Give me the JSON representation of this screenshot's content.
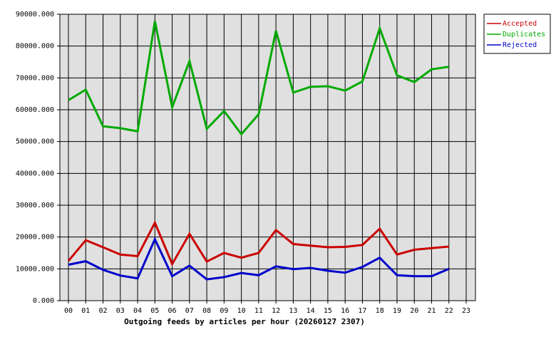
{
  "chart_data": {
    "type": "line",
    "xlabel": "Outgoing feeds by articles per hour (20260127 2307)",
    "categories": [
      "00",
      "01",
      "02",
      "03",
      "04",
      "05",
      "06",
      "07",
      "08",
      "09",
      "10",
      "11",
      "12",
      "13",
      "14",
      "15",
      "16",
      "17",
      "18",
      "19",
      "20",
      "21",
      "22",
      "23"
    ],
    "series": [
      {
        "name": "Accepted",
        "color": "#cc0000",
        "values": [
          12500,
          19000,
          16800,
          14500,
          14000,
          24500,
          11500,
          21000,
          12300,
          15000,
          13500,
          15000,
          22200,
          17800,
          17300,
          16800,
          16900,
          17500,
          22600,
          14500,
          16000,
          16500,
          17000,
          null
        ]
      },
      {
        "name": "Duplicates",
        "color": "#00aa00",
        "values": [
          63000,
          66300,
          54800,
          54200,
          53200,
          87800,
          60800,
          75300,
          54000,
          59600,
          52300,
          58600,
          84800,
          65400,
          67200,
          67400,
          66000,
          68900,
          85600,
          70800,
          68700,
          72700,
          73500,
          null
        ]
      },
      {
        "name": "Rejected",
        "color": "#0000cc",
        "values": [
          11300,
          12400,
          9700,
          7900,
          7000,
          19300,
          7700,
          11000,
          6700,
          7400,
          8700,
          8000,
          10800,
          9900,
          10300,
          9400,
          8800,
          10600,
          13500,
          8000,
          7700,
          7700,
          10000,
          null
        ]
      }
    ],
    "ylim": [
      0,
      90000
    ],
    "yticks": [
      {
        "value": 0,
        "label": "0.000"
      },
      {
        "value": 10000,
        "label": "10000.000"
      },
      {
        "value": 20000,
        "label": "20000.000"
      },
      {
        "value": 30000,
        "label": "30000.000"
      },
      {
        "value": 40000,
        "label": "40000.000"
      },
      {
        "value": 50000,
        "label": "50000.000"
      },
      {
        "value": 60000,
        "label": "60000.000"
      },
      {
        "value": 70000,
        "label": "70000.000"
      },
      {
        "value": 80000,
        "label": "80000.000"
      },
      {
        "value": 90000,
        "label": "90000.000"
      }
    ],
    "grid": true,
    "legend": "top-right"
  }
}
